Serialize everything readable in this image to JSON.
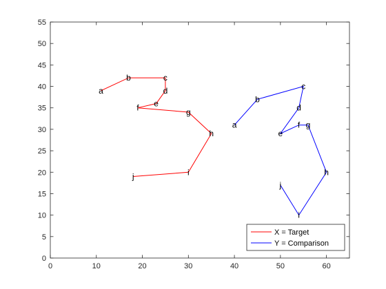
{
  "chart_data": {
    "type": "line",
    "title": "",
    "xlabel": "",
    "ylabel": "",
    "xlim": [
      0,
      65
    ],
    "ylim": [
      0,
      55
    ],
    "x_ticks": [
      "0",
      "10",
      "20",
      "30",
      "40",
      "50",
      "60"
    ],
    "y_ticks": [
      "0",
      "5",
      "10",
      "15",
      "20",
      "25",
      "30",
      "35",
      "40",
      "45",
      "50",
      "55"
    ],
    "grid": false,
    "legend": "bottom-right",
    "series": [
      {
        "name": "X = Target",
        "color": "#ff0000",
        "points": [
          {
            "label": "a",
            "x": 11,
            "y": 39
          },
          {
            "label": "b",
            "x": 17,
            "y": 42
          },
          {
            "label": "c",
            "x": 25,
            "y": 42
          },
          {
            "label": "d",
            "x": 25,
            "y": 39
          },
          {
            "label": "e",
            "x": 23,
            "y": 36
          },
          {
            "label": "f",
            "x": 19,
            "y": 35
          },
          {
            "label": "g",
            "x": 30,
            "y": 34
          },
          {
            "label": "h",
            "x": 35,
            "y": 29
          },
          {
            "label": "i",
            "x": 30,
            "y": 20
          },
          {
            "label": "j",
            "x": 18,
            "y": 19
          }
        ]
      },
      {
        "name": "Y = Comparison",
        "color": "#0000ff",
        "points": [
          {
            "label": "a",
            "x": 40,
            "y": 31
          },
          {
            "label": "b",
            "x": 45,
            "y": 37
          },
          {
            "label": "c",
            "x": 55,
            "y": 40
          },
          {
            "label": "d",
            "x": 54,
            "y": 35
          },
          {
            "label": "e",
            "x": 50,
            "y": 29
          },
          {
            "label": "f",
            "x": 54,
            "y": 31
          },
          {
            "label": "g",
            "x": 56,
            "y": 31
          },
          {
            "label": "h",
            "x": 60,
            "y": 20
          },
          {
            "label": "i",
            "x": 54,
            "y": 10
          },
          {
            "label": "j",
            "x": 50,
            "y": 17
          }
        ]
      }
    ]
  }
}
